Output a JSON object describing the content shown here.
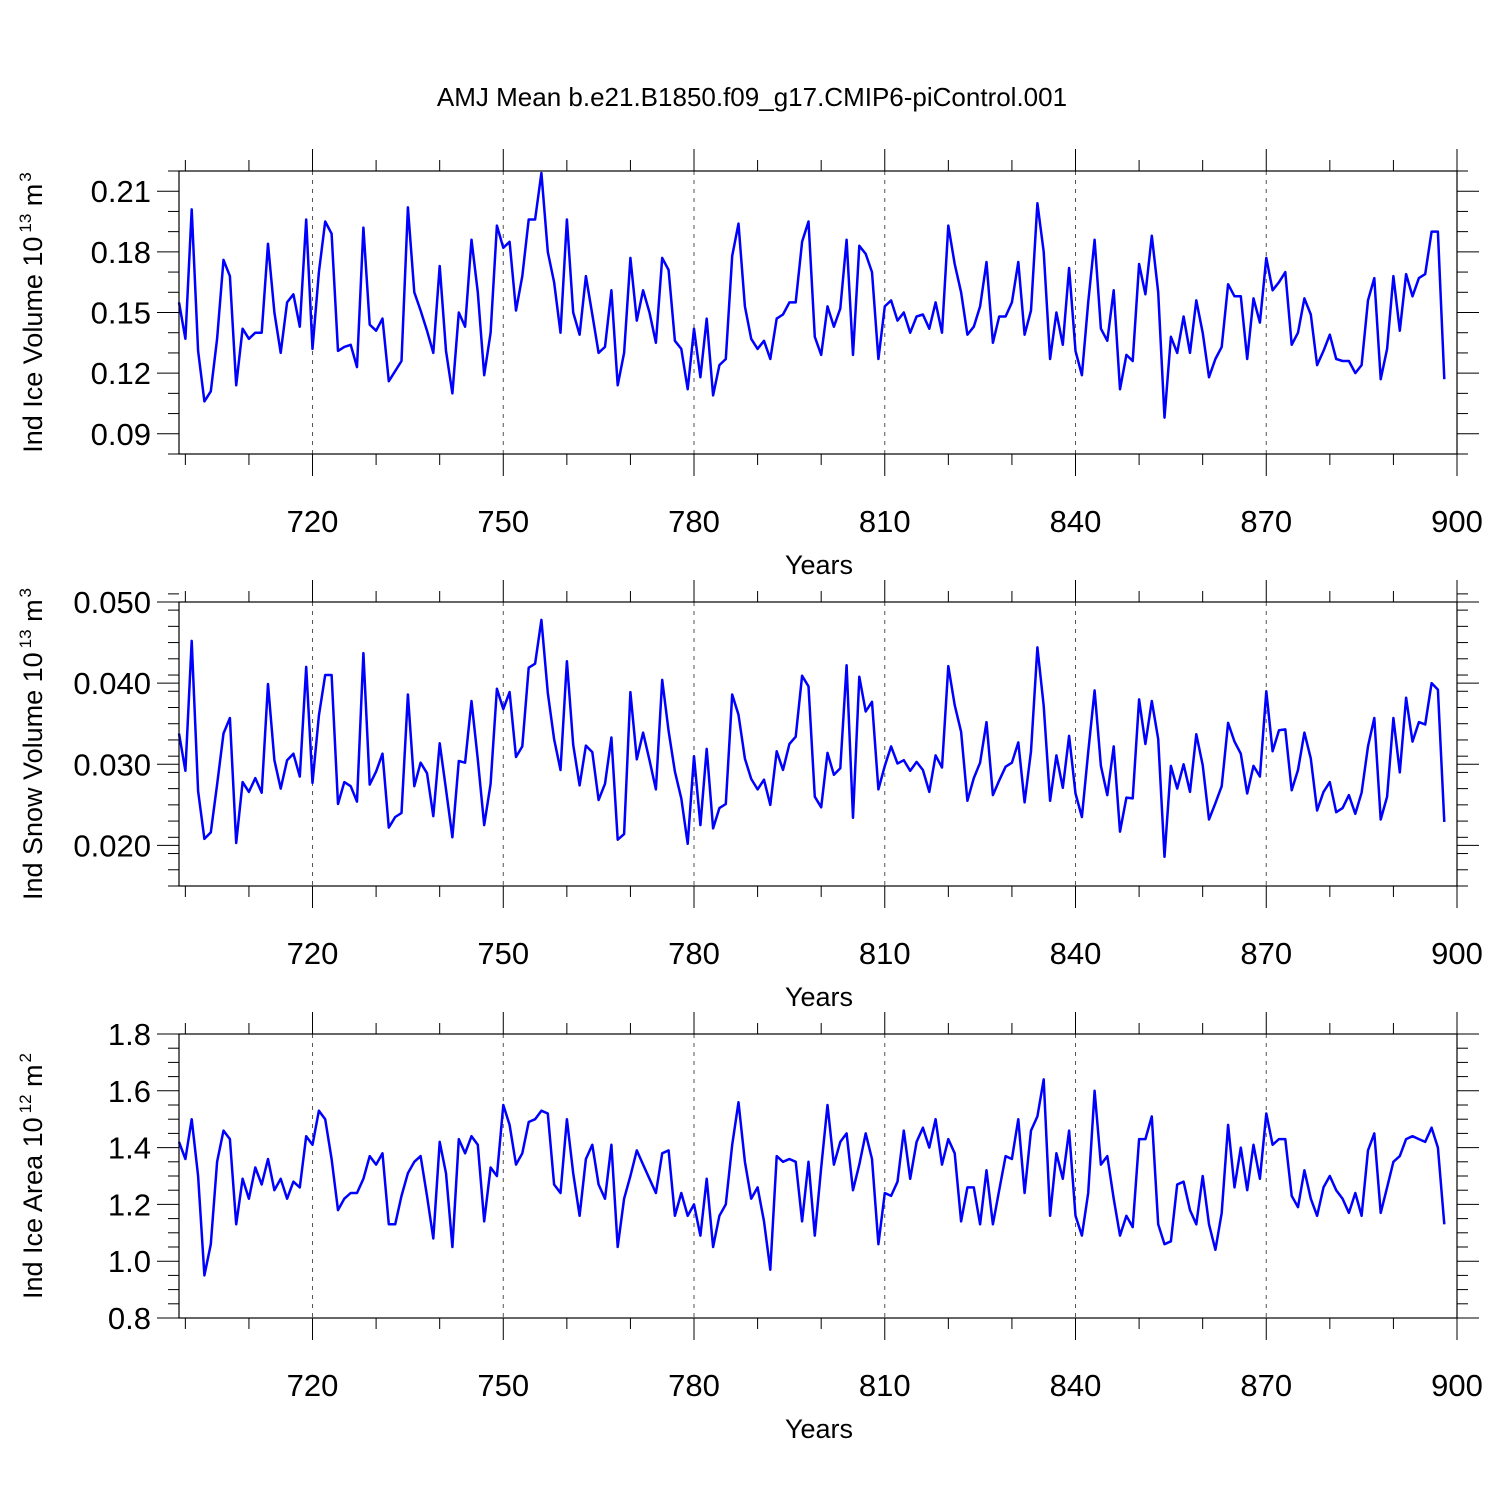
{
  "title": "AMJ Mean b.e21.B1850.f09_g17.CMIP6-piControl.001",
  "series_color": "#0000ff",
  "chart_data": [
    {
      "type": "line",
      "xlabel": "Years",
      "ylabel": "Ind Ice Volume 10",
      "ylabel_exp": "13",
      "ylabel_unit": " m",
      "ylabel_unit_exp": "3",
      "xlim": [
        699,
        900
      ],
      "ylim": [
        0.08,
        0.22
      ],
      "yticks": [
        0.09,
        0.12,
        0.15,
        0.18,
        0.21
      ],
      "ytick_labels": [
        "0.09",
        "0.12",
        "0.15",
        "0.18",
        "0.21"
      ],
      "yminor_step": 0.01,
      "xticks": [
        720,
        750,
        780,
        810,
        840,
        870,
        900
      ],
      "xtick_labels": [
        "720",
        "750",
        "780",
        "810",
        "840",
        "870",
        "900"
      ],
      "xminor_step": 10,
      "grid": "vertical dashed at major x ticks",
      "x_start": 699,
      "x_step": 1,
      "values": [
        0.155,
        0.137,
        0.201,
        0.131,
        0.106,
        0.111,
        0.137,
        0.176,
        0.168,
        0.114,
        0.142,
        0.137,
        0.14,
        0.14,
        0.184,
        0.15,
        0.13,
        0.155,
        0.159,
        0.143,
        0.196,
        0.132,
        0.17,
        0.195,
        0.189,
        0.131,
        0.133,
        0.134,
        0.123,
        0.192,
        0.144,
        0.141,
        0.147,
        0.116,
        0.121,
        0.126,
        0.202,
        0.16,
        0.151,
        0.141,
        0.13,
        0.173,
        0.131,
        0.11,
        0.15,
        0.143,
        0.186,
        0.16,
        0.119,
        0.14,
        0.193,
        0.182,
        0.185,
        0.151,
        0.168,
        0.196,
        0.196,
        0.219,
        0.18,
        0.165,
        0.14,
        0.196,
        0.15,
        0.139,
        0.168,
        0.149,
        0.13,
        0.133,
        0.161,
        0.114,
        0.13,
        0.177,
        0.146,
        0.161,
        0.15,
        0.135,
        0.177,
        0.171,
        0.136,
        0.132,
        0.112,
        0.142,
        0.118,
        0.147,
        0.109,
        0.124,
        0.127,
        0.178,
        0.194,
        0.153,
        0.137,
        0.132,
        0.136,
        0.127,
        0.147,
        0.149,
        0.155,
        0.155,
        0.185,
        0.195,
        0.138,
        0.129,
        0.153,
        0.143,
        0.152,
        0.186,
        0.129,
        0.183,
        0.179,
        0.17,
        0.127,
        0.153,
        0.156,
        0.146,
        0.15,
        0.14,
        0.148,
        0.149,
        0.142,
        0.155,
        0.14,
        0.193,
        0.174,
        0.16,
        0.139,
        0.143,
        0.153,
        0.175,
        0.135,
        0.148,
        0.148,
        0.155,
        0.175,
        0.139,
        0.151,
        0.204,
        0.18,
        0.127,
        0.15,
        0.134,
        0.172,
        0.131,
        0.119,
        0.155,
        0.186,
        0.142,
        0.136,
        0.161,
        0.112,
        0.129,
        0.126,
        0.174,
        0.159,
        0.188,
        0.16,
        0.098,
        0.138,
        0.13,
        0.148,
        0.13,
        0.156,
        0.14,
        0.118,
        0.127,
        0.133,
        0.164,
        0.158,
        0.158,
        0.127,
        0.157,
        0.145,
        0.177,
        0.161,
        0.165,
        0.17,
        0.134,
        0.14,
        0.157,
        0.149,
        0.124,
        0.131,
        0.139,
        0.127,
        0.126,
        0.126,
        0.12,
        0.124,
        0.156,
        0.167,
        0.117,
        0.132,
        0.168,
        0.141,
        0.169,
        0.158,
        0.167,
        0.169,
        0.19,
        0.19,
        0.117
      ]
    },
    {
      "type": "line",
      "xlabel": "Years",
      "ylabel": "Ind Snow Volume 10",
      "ylabel_exp": "13",
      "ylabel_unit": " m",
      "ylabel_unit_exp": "3",
      "xlim": [
        699,
        900
      ],
      "ylim": [
        0.015,
        0.05
      ],
      "yticks": [
        0.02,
        0.03,
        0.04,
        0.05
      ],
      "ytick_labels": [
        "0.020",
        "0.030",
        "0.040",
        "0.050"
      ],
      "yminor_step": 0.002,
      "xticks": [
        720,
        750,
        780,
        810,
        840,
        870,
        900
      ],
      "xtick_labels": [
        "720",
        "750",
        "780",
        "810",
        "840",
        "870",
        "900"
      ],
      "xminor_step": 10,
      "grid": "vertical dashed at major x ticks",
      "x_start": 699,
      "x_step": 1,
      "values": [
        0.0338,
        0.0292,
        0.0452,
        0.0267,
        0.0208,
        0.0216,
        0.0275,
        0.0338,
        0.0357,
        0.0203,
        0.0278,
        0.0266,
        0.0283,
        0.0265,
        0.0399,
        0.0305,
        0.027,
        0.0305,
        0.0313,
        0.0285,
        0.042,
        0.0277,
        0.036,
        0.041,
        0.041,
        0.0251,
        0.0278,
        0.0273,
        0.0254,
        0.0437,
        0.0275,
        0.0291,
        0.0313,
        0.0222,
        0.0235,
        0.024,
        0.0386,
        0.0273,
        0.0302,
        0.0289,
        0.0236,
        0.0326,
        0.0269,
        0.021,
        0.0304,
        0.0302,
        0.0378,
        0.0306,
        0.0225,
        0.0276,
        0.0393,
        0.0368,
        0.0389,
        0.0309,
        0.0322,
        0.0419,
        0.0424,
        0.0478,
        0.0388,
        0.0331,
        0.0293,
        0.0427,
        0.0324,
        0.0274,
        0.0323,
        0.0315,
        0.0256,
        0.0276,
        0.0333,
        0.0207,
        0.0214,
        0.0389,
        0.0306,
        0.0339,
        0.0305,
        0.0269,
        0.0404,
        0.0341,
        0.0291,
        0.0258,
        0.0202,
        0.031,
        0.0225,
        0.0319,
        0.0221,
        0.0246,
        0.0251,
        0.0386,
        0.0361,
        0.0307,
        0.0282,
        0.0269,
        0.0281,
        0.025,
        0.0316,
        0.0293,
        0.0325,
        0.0334,
        0.0409,
        0.0396,
        0.026,
        0.0247,
        0.0314,
        0.0287,
        0.0295,
        0.0422,
        0.0234,
        0.0408,
        0.0365,
        0.0377,
        0.0269,
        0.0298,
        0.0322,
        0.0301,
        0.0305,
        0.0292,
        0.0303,
        0.0293,
        0.0266,
        0.0311,
        0.0296,
        0.0421,
        0.0373,
        0.034,
        0.0255,
        0.0283,
        0.0302,
        0.0352,
        0.0262,
        0.028,
        0.0297,
        0.0302,
        0.0327,
        0.0253,
        0.0316,
        0.0444,
        0.0372,
        0.0255,
        0.0311,
        0.0271,
        0.0335,
        0.0264,
        0.0235,
        0.0315,
        0.0391,
        0.0298,
        0.0262,
        0.0322,
        0.0217,
        0.0259,
        0.0258,
        0.038,
        0.0325,
        0.0378,
        0.0331,
        0.0186,
        0.0298,
        0.027,
        0.03,
        0.0266,
        0.0337,
        0.0299,
        0.0232,
        0.0252,
        0.0273,
        0.0351,
        0.0328,
        0.0313,
        0.0264,
        0.0298,
        0.0285,
        0.039,
        0.0316,
        0.0342,
        0.0343,
        0.0268,
        0.0293,
        0.0339,
        0.0307,
        0.0243,
        0.0266,
        0.0278,
        0.0241,
        0.0246,
        0.0262,
        0.0239,
        0.0265,
        0.0322,
        0.0357,
        0.0232,
        0.026,
        0.0357,
        0.029,
        0.0382,
        0.0328,
        0.0352,
        0.0349,
        0.04,
        0.0392,
        0.0229
      ]
    },
    {
      "type": "line",
      "xlabel": "Years",
      "ylabel": "Ind Ice Area 10",
      "ylabel_exp": "12",
      "ylabel_unit": " m",
      "ylabel_unit_exp": "2",
      "xlim": [
        699,
        900
      ],
      "ylim": [
        0.8,
        1.8
      ],
      "yticks": [
        0.8,
        1.0,
        1.2,
        1.4,
        1.6,
        1.8
      ],
      "ytick_labels": [
        "0.8",
        "1.0",
        "1.2",
        "1.4",
        "1.6",
        "1.8"
      ],
      "yminor_step": 0.05,
      "xticks": [
        720,
        750,
        780,
        810,
        840,
        870,
        900
      ],
      "xtick_labels": [
        "720",
        "750",
        "780",
        "810",
        "840",
        "870",
        "900"
      ],
      "xminor_step": 10,
      "grid": "vertical dashed at major x ticks",
      "x_start": 699,
      "x_step": 1,
      "values": [
        1.42,
        1.36,
        1.5,
        1.3,
        0.95,
        1.06,
        1.35,
        1.46,
        1.43,
        1.13,
        1.29,
        1.22,
        1.33,
        1.27,
        1.36,
        1.25,
        1.29,
        1.22,
        1.28,
        1.26,
        1.44,
        1.41,
        1.53,
        1.5,
        1.36,
        1.18,
        1.22,
        1.24,
        1.24,
        1.29,
        1.37,
        1.34,
        1.38,
        1.13,
        1.13,
        1.23,
        1.31,
        1.35,
        1.37,
        1.23,
        1.08,
        1.42,
        1.31,
        1.05,
        1.43,
        1.38,
        1.44,
        1.41,
        1.14,
        1.33,
        1.3,
        1.55,
        1.48,
        1.34,
        1.38,
        1.49,
        1.5,
        1.53,
        1.52,
        1.27,
        1.24,
        1.5,
        1.31,
        1.16,
        1.36,
        1.41,
        1.27,
        1.22,
        1.41,
        1.05,
        1.22,
        1.3,
        1.39,
        1.34,
        1.29,
        1.24,
        1.38,
        1.39,
        1.16,
        1.24,
        1.16,
        1.2,
        1.09,
        1.29,
        1.05,
        1.16,
        1.2,
        1.41,
        1.56,
        1.35,
        1.22,
        1.26,
        1.14,
        0.97,
        1.37,
        1.35,
        1.36,
        1.35,
        1.14,
        1.35,
        1.09,
        1.33,
        1.55,
        1.34,
        1.42,
        1.45,
        1.25,
        1.34,
        1.45,
        1.36,
        1.06,
        1.24,
        1.23,
        1.28,
        1.46,
        1.29,
        1.42,
        1.47,
        1.4,
        1.5,
        1.34,
        1.43,
        1.38,
        1.14,
        1.26,
        1.26,
        1.13,
        1.32,
        1.13,
        1.25,
        1.37,
        1.36,
        1.5,
        1.24,
        1.46,
        1.51,
        1.64,
        1.16,
        1.38,
        1.29,
        1.46,
        1.16,
        1.09,
        1.24,
        1.6,
        1.34,
        1.37,
        1.22,
        1.09,
        1.16,
        1.12,
        1.43,
        1.43,
        1.51,
        1.13,
        1.06,
        1.07,
        1.27,
        1.28,
        1.18,
        1.13,
        1.3,
        1.13,
        1.04,
        1.17,
        1.48,
        1.26,
        1.4,
        1.25,
        1.41,
        1.29,
        1.52,
        1.41,
        1.43,
        1.43,
        1.23,
        1.19,
        1.32,
        1.22,
        1.16,
        1.26,
        1.3,
        1.25,
        1.22,
        1.17,
        1.24,
        1.16,
        1.39,
        1.45,
        1.17,
        1.26,
        1.35,
        1.37,
        1.43,
        1.44,
        1.43,
        1.42,
        1.47,
        1.4,
        1.13
      ]
    }
  ]
}
